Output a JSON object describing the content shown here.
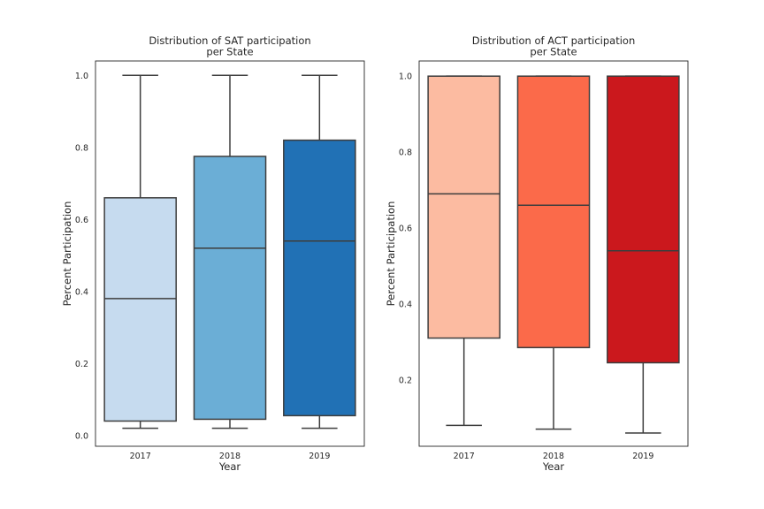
{
  "chart_data": [
    {
      "type": "box",
      "title": [
        "Distribution of SAT participation",
        "per State"
      ],
      "xlabel": "Year",
      "ylabel": "Percent Participation",
      "categories": [
        "2017",
        "2018",
        "2019"
      ],
      "yticks": [
        "0.0",
        "0.2",
        "0.4",
        "0.6",
        "0.8",
        "1.0"
      ],
      "ylim": [
        -0.03,
        1.04
      ],
      "grid": false,
      "colors": [
        "#c6dbef",
        "#6baed6",
        "#2171b5"
      ],
      "boxes": [
        {
          "category": "2017",
          "whisker_low": 0.02,
          "q1": 0.04,
          "median": 0.38,
          "q3": 0.66,
          "whisker_high": 1.0
        },
        {
          "category": "2018",
          "whisker_low": 0.02,
          "q1": 0.045,
          "median": 0.52,
          "q3": 0.775,
          "whisker_high": 1.0
        },
        {
          "category": "2019",
          "whisker_low": 0.02,
          "q1": 0.055,
          "median": 0.54,
          "q3": 0.82,
          "whisker_high": 1.0
        }
      ]
    },
    {
      "type": "box",
      "title": [
        "Distribution of ACT participation",
        "per State"
      ],
      "xlabel": "Year",
      "ylabel": "Percent Participation",
      "categories": [
        "2017",
        "2018",
        "2019"
      ],
      "yticks": [
        "0.2",
        "0.4",
        "0.6",
        "0.8",
        "1.0"
      ],
      "ylim": [
        0.025,
        1.04
      ],
      "grid": false,
      "colors": [
        "#fcbba1",
        "#fb6a4a",
        "#cb181d"
      ],
      "boxes": [
        {
          "category": "2017",
          "whisker_low": 0.08,
          "q1": 0.31,
          "median": 0.69,
          "q3": 1.0,
          "whisker_high": 1.0
        },
        {
          "category": "2018",
          "whisker_low": 0.07,
          "q1": 0.285,
          "median": 0.66,
          "q3": 1.0,
          "whisker_high": 1.0
        },
        {
          "category": "2019",
          "whisker_low": 0.06,
          "q1": 0.245,
          "median": 0.54,
          "q3": 1.0,
          "whisker_high": 1.0
        }
      ]
    }
  ]
}
